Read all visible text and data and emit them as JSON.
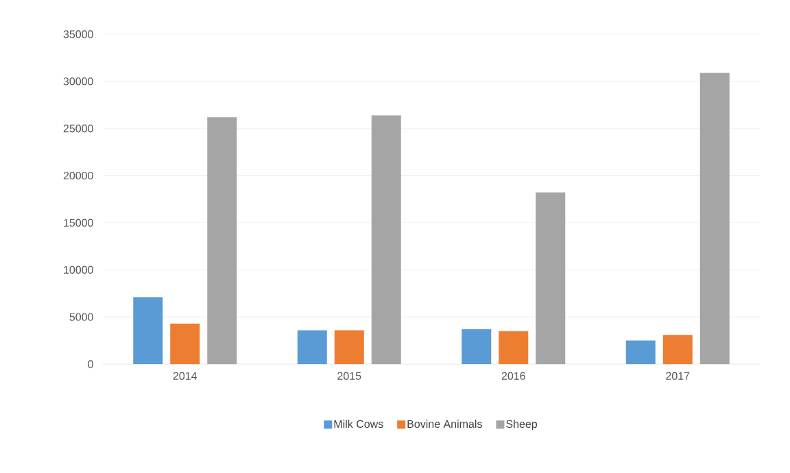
{
  "chart_data": {
    "type": "bar",
    "categories": [
      "2014",
      "2015",
      "2016",
      "2017"
    ],
    "series": [
      {
        "name": "Milk Cows",
        "color": "#5b9bd5",
        "values": [
          7100,
          3600,
          3700,
          2500
        ]
      },
      {
        "name": "Bovine Animals",
        "color": "#ed7d31",
        "values": [
          4300,
          3600,
          3500,
          3100
        ]
      },
      {
        "name": "Sheep",
        "color": "#a5a5a5",
        "values": [
          26200,
          26400,
          18200,
          30900
        ]
      }
    ],
    "ylim": [
      0,
      35000
    ],
    "yticks": [
      0,
      5000,
      10000,
      15000,
      20000,
      25000,
      30000,
      35000
    ],
    "grid": "y",
    "legend": "bottom"
  }
}
